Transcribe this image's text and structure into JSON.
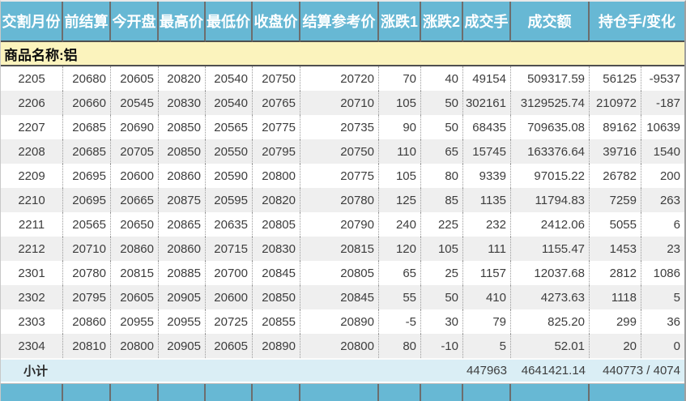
{
  "commodity": {
    "label": "商品名称:铝"
  },
  "table": {
    "columns": [
      "交割月份",
      "前结算",
      "今开盘",
      "最高价",
      "最低价",
      "收盘价",
      "结算参考价",
      "涨跌1",
      "涨跌2",
      "成交手",
      "成交额",
      "持仓手/变化"
    ],
    "rows": [
      [
        "2205",
        "20680",
        "20605",
        "20820",
        "20540",
        "20750",
        "20720",
        "70",
        "40",
        "49154",
        "509317.59",
        "56125",
        "-9537"
      ],
      [
        "2206",
        "20660",
        "20545",
        "20830",
        "20540",
        "20765",
        "20710",
        "105",
        "50",
        "302161",
        "3129525.74",
        "210972",
        "-187"
      ],
      [
        "2207",
        "20685",
        "20690",
        "20850",
        "20565",
        "20775",
        "20735",
        "90",
        "50",
        "68435",
        "709635.08",
        "89162",
        "10639"
      ],
      [
        "2208",
        "20685",
        "20705",
        "20850",
        "20550",
        "20795",
        "20750",
        "110",
        "65",
        "15745",
        "163376.64",
        "39716",
        "1540"
      ],
      [
        "2209",
        "20695",
        "20600",
        "20860",
        "20590",
        "20800",
        "20775",
        "105",
        "80",
        "9339",
        "97015.22",
        "26782",
        "200"
      ],
      [
        "2210",
        "20695",
        "20665",
        "20875",
        "20595",
        "20820",
        "20780",
        "125",
        "85",
        "1135",
        "11794.83",
        "7259",
        "263"
      ],
      [
        "2211",
        "20565",
        "20650",
        "20865",
        "20635",
        "20805",
        "20790",
        "240",
        "225",
        "232",
        "2412.06",
        "5055",
        "6"
      ],
      [
        "2212",
        "20710",
        "20860",
        "20860",
        "20715",
        "20830",
        "20815",
        "120",
        "105",
        "111",
        "1155.47",
        "1453",
        "23"
      ],
      [
        "2301",
        "20780",
        "20815",
        "20885",
        "20700",
        "20845",
        "20805",
        "65",
        "25",
        "1157",
        "12037.68",
        "2812",
        "1086"
      ],
      [
        "2302",
        "20795",
        "20605",
        "20905",
        "20600",
        "20850",
        "20845",
        "55",
        "50",
        "410",
        "4273.63",
        "1118",
        "5"
      ],
      [
        "2303",
        "20860",
        "20955",
        "20955",
        "20725",
        "20855",
        "20890",
        "-5",
        "30",
        "79",
        "825.20",
        "299",
        "36"
      ],
      [
        "2304",
        "20810",
        "20800",
        "20905",
        "20605",
        "20890",
        "20800",
        "80",
        "-10",
        "5",
        "52.01",
        "20",
        "0"
      ]
    ]
  },
  "subtotal": {
    "label": "小计",
    "volume": "447963",
    "turnover": "4641421.14",
    "open_interest_change": "440773 / 4074"
  },
  "colors": {
    "header_blue": "#67b8d4",
    "commodity_yellow": "#fbf3bd",
    "subtotal_blue": "#daeef5",
    "stripe_gray": "#efefef",
    "text_dark": "#3d3d3d"
  }
}
